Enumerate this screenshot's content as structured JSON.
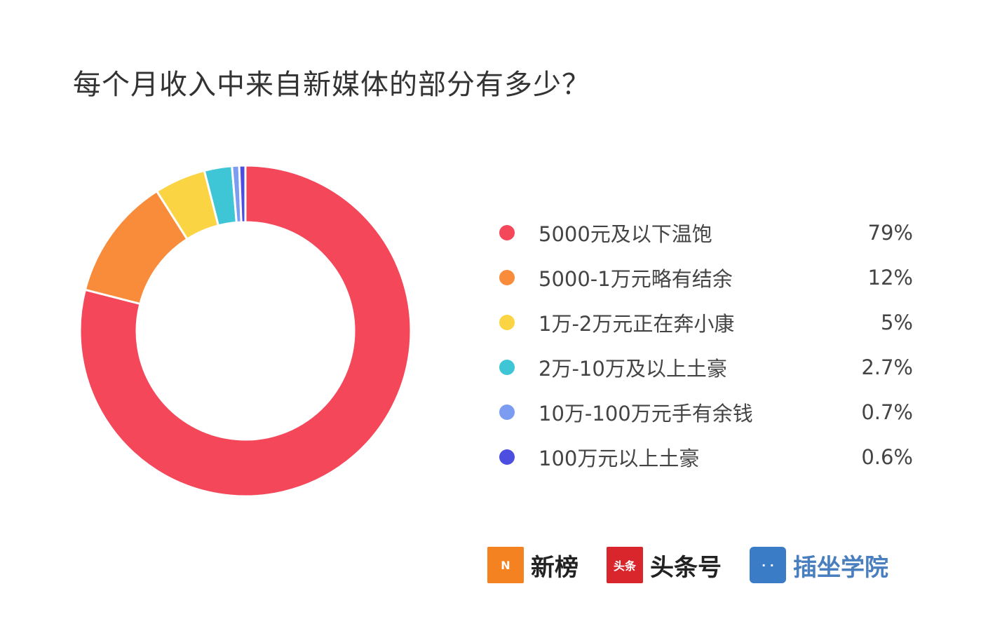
{
  "chart_data": {
    "type": "pie",
    "donut": true,
    "title": "每个月收入中来自新媒体的部分有多少？",
    "start": "top, clockwise",
    "legend_position": "right",
    "slices": [
      {
        "label": "5000元及以下温饱",
        "value": 79,
        "display": "79%",
        "color": "#f5475a"
      },
      {
        "label": "5000-1万元略有结余",
        "value": 12,
        "display": "12%",
        "color": "#f98c3a"
      },
      {
        "label": "1万-2万元正在奔小康",
        "value": 5,
        "display": "5%",
        "color": "#fbd443"
      },
      {
        "label": "2万-10万及以上土豪",
        "value": 2.7,
        "display": "2.7%",
        "color": "#3ec6d6"
      },
      {
        "label": "10万-100万元手有余钱",
        "value": 0.7,
        "display": "0.7%",
        "color": "#7b9cf0"
      },
      {
        "label": "100万元以上土豪",
        "value": 0.6,
        "display": "0.6%",
        "color": "#4b4ee0"
      }
    ]
  },
  "logos": [
    {
      "name": "新榜",
      "mark": "N",
      "color": "#f58220"
    },
    {
      "name": "头条号",
      "mark": "头条",
      "color": "#d9262c"
    },
    {
      "name": "插坐学院",
      "mark": "· ·",
      "color": "#3a7cc6"
    }
  ]
}
